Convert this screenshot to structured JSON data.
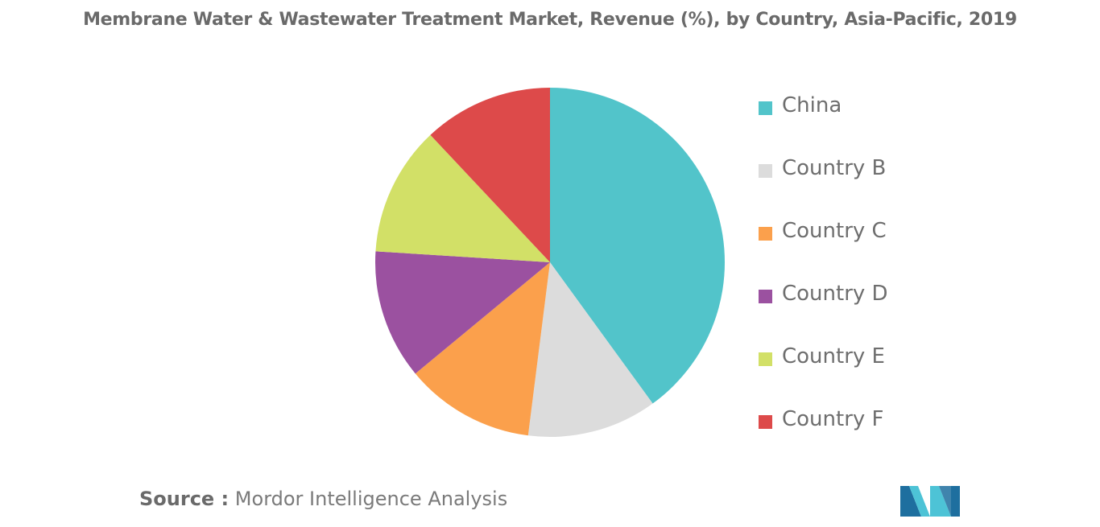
{
  "chart_data": {
    "type": "pie",
    "title": "Membrane Water & Wastewater Treatment Market, Revenue (%), by Country, Asia-Pacific, 2019",
    "categories": [
      "China",
      "Country B",
      "Country C",
      "Country D",
      "Country E",
      "Country F"
    ],
    "values": [
      40,
      12,
      12,
      12,
      12,
      12
    ],
    "colors": [
      "#52C4CA",
      "#DCDCDC",
      "#FBA04C",
      "#9B51A0",
      "#D2E067",
      "#DD4A4A"
    ],
    "legend_position": "right",
    "start_angle_deg": 0,
    "direction": "clockwise"
  },
  "source": {
    "label": "Source :",
    "text": "Mordor Intelligence Analysis"
  },
  "logo": {
    "icon": "mordor-intelligence-logo-icon",
    "colors": [
      "#1E6F9F",
      "#4DC3D6"
    ]
  }
}
